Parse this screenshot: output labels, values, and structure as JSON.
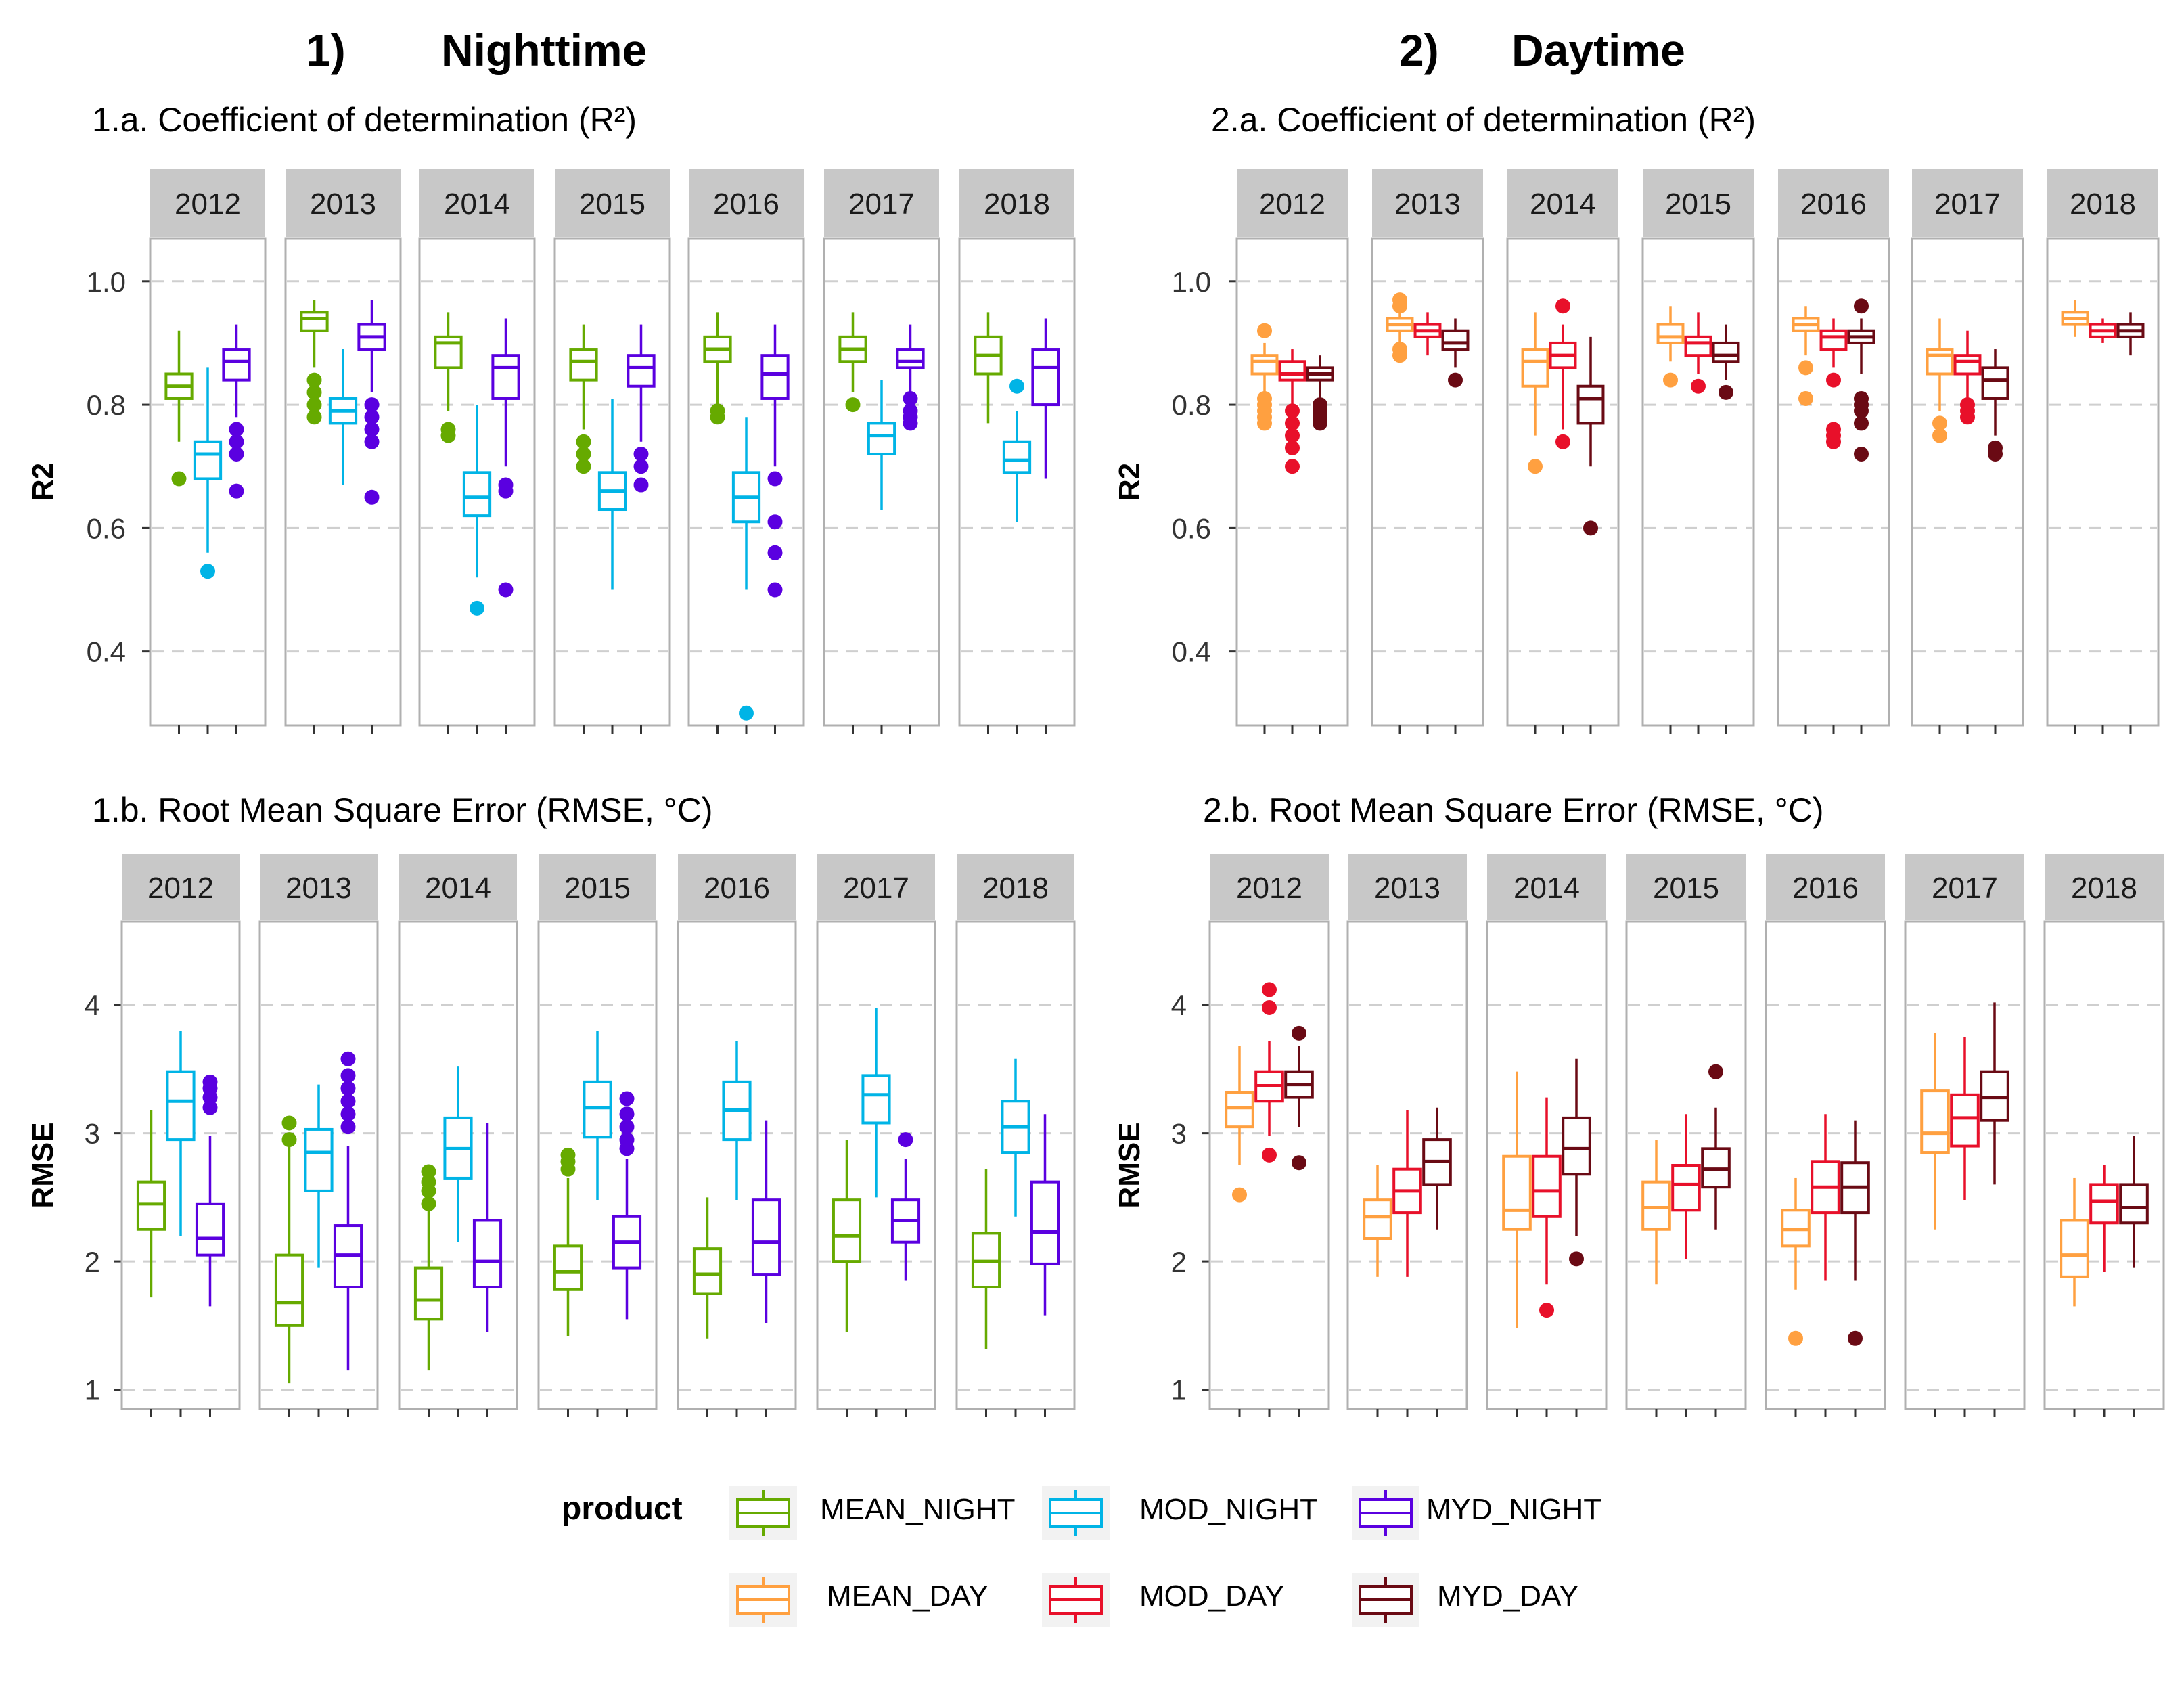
{
  "headers": {
    "night": {
      "num": "1)",
      "title": "Nighttime"
    },
    "day": {
      "num": "2)",
      "title": "Daytime"
    }
  },
  "legend": {
    "title": "product",
    "items": [
      {
        "label": "MEAN_NIGHT",
        "color": "#66aa00"
      },
      {
        "label": "MOD_NIGHT",
        "color": "#00b4e6"
      },
      {
        "label": "MYD_NIGHT",
        "color": "#5a00e0"
      },
      {
        "label": "MEAN_DAY",
        "color": "#ffa040"
      },
      {
        "label": "MOD_DAY",
        "color": "#e8102a"
      },
      {
        "label": "MYD_DAY",
        "color": "#6a0a14"
      }
    ]
  },
  "chart_data": [
    {
      "id": "night_r2",
      "type": "boxplot",
      "title": "1.a. Coefficient of determination (R²)",
      "ylabel": "R2",
      "ylim": [
        0.28,
        1.07
      ],
      "yticks": [
        0.4,
        0.6,
        0.8,
        1.0
      ],
      "yticklabels": [
        "0.4",
        "0.6",
        "0.8",
        "1.0"
      ],
      "facets": [
        "2012",
        "2013",
        "2014",
        "2015",
        "2016",
        "2017",
        "2018"
      ],
      "series_names": [
        "MEAN_NIGHT",
        "MOD_NIGHT",
        "MYD_NIGHT"
      ],
      "colors": [
        "#66aa00",
        "#00b4e6",
        "#5a00e0"
      ],
      "boxes": [
        [
          [
            0.74,
            0.81,
            0.83,
            0.85,
            0.92,
            [
              0.68
            ]
          ],
          [
            0.56,
            0.68,
            0.72,
            0.74,
            0.86,
            [
              0.53
            ]
          ],
          [
            0.78,
            0.84,
            0.87,
            0.89,
            0.93,
            [
              0.76,
              0.74,
              0.72,
              0.66
            ]
          ]
        ],
        [
          [
            0.86,
            0.92,
            0.94,
            0.95,
            0.97,
            [
              0.84,
              0.82,
              0.8,
              0.78
            ]
          ],
          [
            0.67,
            0.77,
            0.79,
            0.81,
            0.89,
            []
          ],
          [
            0.82,
            0.89,
            0.91,
            0.93,
            0.97,
            [
              0.8,
              0.78,
              0.76,
              0.74,
              0.65
            ]
          ]
        ],
        [
          [
            0.79,
            0.86,
            0.9,
            0.91,
            0.95,
            [
              0.76,
              0.75
            ]
          ],
          [
            0.52,
            0.62,
            0.65,
            0.69,
            0.8,
            [
              0.47
            ]
          ],
          [
            0.7,
            0.81,
            0.86,
            0.88,
            0.94,
            [
              0.67,
              0.66,
              0.5
            ]
          ]
        ],
        [
          [
            0.76,
            0.84,
            0.87,
            0.89,
            0.93,
            [
              0.74,
              0.72,
              0.7
            ]
          ],
          [
            0.5,
            0.63,
            0.66,
            0.69,
            0.81,
            []
          ],
          [
            0.74,
            0.83,
            0.86,
            0.88,
            0.93,
            [
              0.72,
              0.7,
              0.67
            ]
          ]
        ],
        [
          [
            0.8,
            0.87,
            0.89,
            0.91,
            0.95,
            [
              0.79,
              0.78
            ]
          ],
          [
            0.5,
            0.61,
            0.65,
            0.69,
            0.78,
            [
              0.3
            ]
          ],
          [
            0.7,
            0.81,
            0.85,
            0.88,
            0.93,
            [
              0.68,
              0.61,
              0.56,
              0.5
            ]
          ]
        ],
        [
          [
            0.82,
            0.87,
            0.89,
            0.91,
            0.95,
            [
              0.8
            ]
          ],
          [
            0.63,
            0.72,
            0.75,
            0.77,
            0.84,
            []
          ],
          [
            0.82,
            0.86,
            0.87,
            0.89,
            0.93,
            [
              0.81,
              0.79,
              0.78,
              0.77
            ]
          ]
        ],
        [
          [
            0.77,
            0.85,
            0.88,
            0.91,
            0.95,
            []
          ],
          [
            0.61,
            0.69,
            0.71,
            0.74,
            0.79,
            [
              0.83
            ]
          ],
          [
            0.68,
            0.8,
            0.86,
            0.89,
            0.94,
            []
          ]
        ]
      ]
    },
    {
      "id": "day_r2",
      "type": "boxplot",
      "title": "2.a. Coefficient of determination (R²)",
      "ylabel": "R2",
      "ylim": [
        0.28,
        1.07
      ],
      "yticks": [
        0.4,
        0.6,
        0.8,
        1.0
      ],
      "yticklabels": [
        "0.4",
        "0.6",
        "0.8",
        "1.0"
      ],
      "facets": [
        "2012",
        "2013",
        "2014",
        "2015",
        "2016",
        "2017",
        "2018"
      ],
      "series_names": [
        "MEAN_DAY",
        "MOD_DAY",
        "MYD_DAY"
      ],
      "colors": [
        "#ffa040",
        "#e8102a",
        "#6a0a14"
      ],
      "boxes": [
        [
          [
            0.82,
            0.85,
            0.87,
            0.88,
            0.9,
            [
              0.92,
              0.81,
              0.8,
              0.79,
              0.78,
              0.77
            ]
          ],
          [
            0.8,
            0.84,
            0.85,
            0.87,
            0.89,
            [
              0.79,
              0.77,
              0.75,
              0.73,
              0.7
            ]
          ],
          [
            0.81,
            0.84,
            0.85,
            0.86,
            0.88,
            [
              0.8,
              0.79,
              0.78,
              0.77
            ]
          ]
        ],
        [
          [
            0.9,
            0.92,
            0.93,
            0.94,
            0.96,
            [
              0.97,
              0.96,
              0.89,
              0.88
            ]
          ],
          [
            0.88,
            0.91,
            0.92,
            0.93,
            0.95,
            []
          ],
          [
            0.86,
            0.89,
            0.9,
            0.92,
            0.94,
            [
              0.84
            ]
          ]
        ],
        [
          [
            0.75,
            0.83,
            0.87,
            0.89,
            0.95,
            [
              0.7
            ]
          ],
          [
            0.76,
            0.86,
            0.88,
            0.9,
            0.93,
            [
              0.96,
              0.74
            ]
          ],
          [
            0.7,
            0.77,
            0.81,
            0.83,
            0.91,
            [
              0.6
            ]
          ]
        ],
        [
          [
            0.87,
            0.9,
            0.91,
            0.93,
            0.96,
            [
              0.84
            ]
          ],
          [
            0.85,
            0.88,
            0.9,
            0.91,
            0.95,
            [
              0.83
            ]
          ],
          [
            0.84,
            0.87,
            0.88,
            0.9,
            0.93,
            [
              0.82
            ]
          ]
        ],
        [
          [
            0.88,
            0.92,
            0.93,
            0.94,
            0.96,
            [
              0.86,
              0.81
            ]
          ],
          [
            0.86,
            0.89,
            0.91,
            0.92,
            0.94,
            [
              0.84,
              0.76,
              0.75,
              0.74
            ]
          ],
          [
            0.85,
            0.9,
            0.91,
            0.92,
            0.94,
            [
              0.96,
              0.81,
              0.8,
              0.79,
              0.77,
              0.72
            ]
          ]
        ],
        [
          [
            0.79,
            0.85,
            0.88,
            0.89,
            0.94,
            [
              0.77,
              0.75
            ]
          ],
          [
            0.81,
            0.85,
            0.87,
            0.88,
            0.92,
            [
              0.8,
              0.79,
              0.78
            ]
          ],
          [
            0.75,
            0.81,
            0.84,
            0.86,
            0.89,
            [
              0.73,
              0.72
            ]
          ]
        ],
        [
          [
            0.91,
            0.93,
            0.94,
            0.95,
            0.97,
            []
          ],
          [
            0.9,
            0.91,
            0.92,
            0.93,
            0.94,
            []
          ],
          [
            0.88,
            0.91,
            0.92,
            0.93,
            0.95,
            []
          ]
        ]
      ]
    },
    {
      "id": "night_rmse",
      "type": "boxplot",
      "title": "1.b. Root Mean Square Error (RMSE, °C)",
      "ylabel": "RMSE",
      "ylim": [
        0.85,
        4.65
      ],
      "yticks": [
        1,
        2,
        3,
        4
      ],
      "yticklabels": [
        "1",
        "2",
        "3",
        "4"
      ],
      "facets": [
        "2012",
        "2013",
        "2014",
        "2015",
        "2016",
        "2017",
        "2018"
      ],
      "series_names": [
        "MEAN_NIGHT",
        "MOD_NIGHT",
        "MYD_NIGHT"
      ],
      "colors": [
        "#66aa00",
        "#00b4e6",
        "#5a00e0"
      ],
      "boxes": [
        [
          [
            1.72,
            2.25,
            2.45,
            2.62,
            3.18,
            []
          ],
          [
            2.2,
            2.95,
            3.25,
            3.48,
            3.8,
            []
          ],
          [
            1.65,
            2.05,
            2.18,
            2.45,
            2.98,
            [
              3.2,
              3.28,
              3.35,
              3.4
            ]
          ]
        ],
        [
          [
            1.05,
            1.5,
            1.68,
            2.05,
            2.9,
            [
              2.95,
              3.08
            ]
          ],
          [
            1.95,
            2.55,
            2.85,
            3.03,
            3.38,
            []
          ],
          [
            1.15,
            1.8,
            2.05,
            2.28,
            2.9,
            [
              3.05,
              3.15,
              3.25,
              3.35,
              3.45,
              3.58
            ]
          ]
        ],
        [
          [
            1.15,
            1.55,
            1.7,
            1.95,
            2.4,
            [
              2.45,
              2.55,
              2.62,
              2.7
            ]
          ],
          [
            2.15,
            2.65,
            2.88,
            3.12,
            3.52,
            []
          ],
          [
            1.45,
            1.8,
            2.0,
            2.32,
            3.08,
            []
          ]
        ],
        [
          [
            1.42,
            1.78,
            1.92,
            2.12,
            2.65,
            [
              2.72,
              2.78,
              2.83
            ]
          ],
          [
            2.48,
            2.97,
            3.2,
            3.4,
            3.8,
            []
          ],
          [
            1.55,
            1.95,
            2.15,
            2.35,
            2.8,
            [
              2.88,
              2.95,
              3.05,
              3.15,
              3.27
            ]
          ]
        ],
        [
          [
            1.4,
            1.75,
            1.9,
            2.1,
            2.5,
            []
          ],
          [
            2.48,
            2.95,
            3.18,
            3.4,
            3.72,
            []
          ],
          [
            1.52,
            1.9,
            2.15,
            2.48,
            3.1,
            []
          ]
        ],
        [
          [
            1.45,
            2.0,
            2.2,
            2.48,
            2.95,
            []
          ],
          [
            2.5,
            3.08,
            3.3,
            3.45,
            3.98,
            []
          ],
          [
            1.85,
            2.15,
            2.32,
            2.48,
            2.8,
            [
              2.95
            ]
          ]
        ],
        [
          [
            1.32,
            1.8,
            2.0,
            2.22,
            2.72,
            []
          ],
          [
            2.35,
            2.85,
            3.05,
            3.25,
            3.58,
            []
          ],
          [
            1.58,
            1.98,
            2.23,
            2.62,
            3.15,
            []
          ]
        ]
      ]
    },
    {
      "id": "day_rmse",
      "type": "boxplot",
      "title": "2.b. Root Mean Square Error (RMSE, °C)",
      "ylabel": "RMSE",
      "ylim": [
        0.85,
        4.65
      ],
      "yticks": [
        1,
        2,
        3,
        4
      ],
      "yticklabels": [
        "1",
        "2",
        "3",
        "4"
      ],
      "facets": [
        "2012",
        "2013",
        "2014",
        "2015",
        "2016",
        "2017",
        "2018"
      ],
      "series_names": [
        "MEAN_DAY",
        "MOD_DAY",
        "MYD_DAY"
      ],
      "colors": [
        "#ffa040",
        "#e8102a",
        "#6a0a14"
      ],
      "boxes": [
        [
          [
            2.75,
            3.05,
            3.2,
            3.32,
            3.68,
            [
              2.52
            ]
          ],
          [
            2.98,
            3.25,
            3.37,
            3.48,
            3.72,
            [
              4.12,
              3.98,
              2.83
            ]
          ],
          [
            3.05,
            3.28,
            3.38,
            3.48,
            3.68,
            [
              3.78,
              2.77
            ]
          ]
        ],
        [
          [
            1.88,
            2.18,
            2.35,
            2.48,
            2.75,
            []
          ],
          [
            1.88,
            2.38,
            2.55,
            2.72,
            3.18,
            []
          ],
          [
            2.25,
            2.6,
            2.78,
            2.95,
            3.2,
            []
          ]
        ],
        [
          [
            1.48,
            2.25,
            2.4,
            2.82,
            3.48,
            []
          ],
          [
            1.82,
            2.35,
            2.55,
            2.82,
            3.28,
            [
              1.62
            ]
          ],
          [
            2.2,
            2.68,
            2.88,
            3.12,
            3.58,
            [
              2.02
            ]
          ]
        ],
        [
          [
            1.82,
            2.25,
            2.42,
            2.62,
            2.95,
            []
          ],
          [
            2.02,
            2.4,
            2.6,
            2.75,
            3.15,
            []
          ],
          [
            2.25,
            2.58,
            2.72,
            2.88,
            3.2,
            [
              3.48
            ]
          ]
        ],
        [
          [
            1.78,
            2.12,
            2.25,
            2.4,
            2.65,
            [
              1.4
            ]
          ],
          [
            1.85,
            2.38,
            2.58,
            2.78,
            3.15,
            []
          ],
          [
            1.85,
            2.38,
            2.58,
            2.77,
            3.1,
            [
              1.4
            ]
          ]
        ],
        [
          [
            2.25,
            2.85,
            3.0,
            3.33,
            3.78,
            []
          ],
          [
            2.48,
            2.9,
            3.12,
            3.3,
            3.75,
            []
          ],
          [
            2.6,
            3.1,
            3.28,
            3.48,
            4.02,
            []
          ]
        ],
        [
          [
            1.65,
            1.88,
            2.05,
            2.32,
            2.65,
            []
          ],
          [
            1.92,
            2.3,
            2.47,
            2.6,
            2.75,
            []
          ],
          [
            1.95,
            2.3,
            2.42,
            2.6,
            2.98,
            []
          ]
        ]
      ]
    }
  ]
}
